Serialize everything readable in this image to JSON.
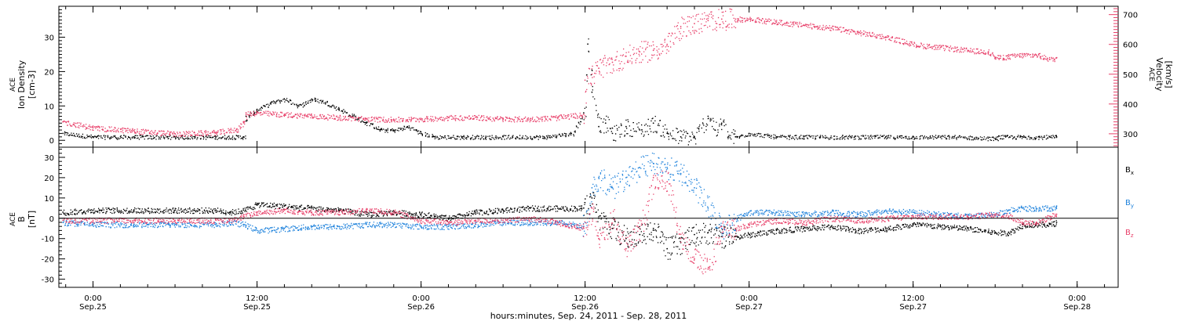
{
  "time_axis": {
    "title": "hours:minutes, Sep. 24, 2011 - Sep. 28, 2011",
    "ticks": [
      {
        "t": 0,
        "time": "0:00",
        "date": "Sep.25"
      },
      {
        "t": 12,
        "time": "12:00",
        "date": "Sep.25"
      },
      {
        "t": 24,
        "time": "0:00",
        "date": "Sep.26"
      },
      {
        "t": 36,
        "time": "12:00",
        "date": "Sep.26"
      },
      {
        "t": 48,
        "time": "0:00",
        "date": "Sep.27"
      },
      {
        "t": 60,
        "time": "12:00",
        "date": "Sep.27"
      },
      {
        "t": 72,
        "time": "0:00",
        "date": "Sep.28"
      }
    ]
  },
  "top_panel": {
    "left_label": [
      "ACE",
      "Ion Density",
      "[cm-3]"
    ],
    "right_label": [
      "ACE",
      "Velocity",
      "[km/s]"
    ]
  },
  "bottom_panel": {
    "left_label": [
      "ACE",
      "B",
      "[nT]"
    ],
    "legend": [
      {
        "label": "Bx",
        "base": "B",
        "sub": "x",
        "color": "#000000"
      },
      {
        "label": "By",
        "base": "B",
        "sub": "y",
        "color": "#1e82dc"
      },
      {
        "label": "Bz",
        "base": "B",
        "sub": "z",
        "color": "#e8406a"
      }
    ]
  },
  "colors": {
    "density": "#000000",
    "velocity": "#e8406a",
    "bx": "#000000",
    "by": "#1e82dc",
    "bz": "#e8406a",
    "right_axis": "#e8406a"
  },
  "chart_data": [
    {
      "type": "scatter",
      "title": "",
      "xlabel": "hours:minutes, Sep. 24, 2011 - Sep. 28, 2011",
      "x_units": "hours from 2011-09-25 00:00 UT",
      "xlim": [
        -2.5,
        75
      ],
      "y_axes": [
        {
          "side": "left",
          "label": "ACE Ion Density [cm-3]",
          "ylim": [
            -2,
            39
          ],
          "ticks": [
            0,
            10,
            20,
            30
          ]
        },
        {
          "side": "right",
          "label": "ACE Velocity [km/s]",
          "ylim": [
            255,
            728
          ],
          "ticks": [
            300,
            400,
            500,
            600,
            700
          ]
        }
      ],
      "series": [
        {
          "name": "Ion Density",
          "axis": "left",
          "color": "#000000",
          "x": [
            -2.2,
            0,
            3,
            6,
            9,
            11,
            11.2,
            12,
            13,
            14,
            15,
            16,
            17,
            18,
            19,
            20,
            21,
            22,
            23,
            24,
            25,
            27,
            30,
            33,
            35,
            35.9,
            36.2,
            36.5,
            37,
            37.5,
            38,
            39,
            40,
            41,
            42,
            43,
            44,
            45,
            45.5,
            46,
            46.5,
            47,
            48,
            50,
            52,
            55,
            58,
            60,
            63,
            66,
            66.2,
            68,
            70,
            70.5
          ],
          "y": [
            2,
            1,
            1,
            1,
            1,
            1,
            7,
            9,
            11,
            12,
            10,
            12,
            11,
            9,
            7,
            5,
            3,
            3,
            4,
            2,
            1,
            1,
            1,
            1,
            2,
            8,
            28,
            14,
            4,
            5,
            2,
            4,
            3,
            5,
            2,
            1,
            1,
            7,
            3,
            5,
            1,
            1,
            2,
            1,
            1,
            1,
            1,
            1,
            1,
            0.5,
            1,
            1,
            1,
            1
          ]
        },
        {
          "name": "Velocity",
          "axis": "right",
          "color": "#e8406a",
          "x": [
            -2.2,
            0,
            3,
            6,
            9,
            10.5,
            11,
            11.2,
            12,
            14,
            16,
            18,
            20,
            22,
            24,
            26,
            28,
            30,
            32,
            34,
            35.9,
            36,
            36.5,
            37,
            38,
            39,
            40,
            41,
            42,
            43,
            44,
            45,
            46,
            47,
            48,
            50,
            52,
            54,
            56,
            58,
            60,
            62,
            64,
            65.5,
            66,
            67,
            68,
            69,
            70,
            70.5
          ],
          "y": [
            340,
            320,
            310,
            300,
            305,
            315,
            340,
            370,
            370,
            365,
            360,
            355,
            350,
            348,
            350,
            355,
            355,
            350,
            350,
            355,
            365,
            480,
            500,
            520,
            540,
            560,
            575,
            580,
            600,
            660,
            670,
            680,
            685,
            685,
            685,
            675,
            665,
            655,
            640,
            625,
            600,
            590,
            580,
            575,
            555,
            560,
            565,
            565,
            550,
            555
          ]
        }
      ]
    },
    {
      "type": "scatter",
      "title": "",
      "xlabel": "hours:minutes, Sep. 24, 2011 - Sep. 28, 2011",
      "x_units": "hours from 2011-09-25 00:00 UT",
      "xlim": [
        -2.5,
        75
      ],
      "ylabel": "ACE B [nT]",
      "ylim": [
        -34,
        35
      ],
      "yticks": [
        -30,
        -20,
        -10,
        0,
        10,
        20,
        30
      ],
      "zero_line": true,
      "series": [
        {
          "name": "Bx",
          "color": "#000000",
          "x": [
            -2.2,
            0,
            3,
            6,
            9,
            10,
            11,
            12,
            14,
            16,
            18,
            20,
            22,
            24,
            26,
            28,
            30,
            32,
            34,
            35.9,
            36.5,
            37,
            38,
            39,
            40,
            41,
            42,
            43,
            44,
            45,
            46,
            47,
            48,
            50,
            52,
            54,
            56,
            58,
            60,
            62,
            64,
            66,
            67,
            68,
            69,
            70,
            70.5
          ],
          "y": [
            3,
            4,
            4,
            4,
            4,
            3,
            4,
            7,
            6,
            5,
            4,
            2,
            3,
            2,
            0,
            3,
            4,
            5,
            5,
            5,
            10,
            0,
            -5,
            -10,
            -8,
            -5,
            -15,
            -12,
            -8,
            -7,
            -9,
            -9,
            -8,
            -6,
            -5,
            -4,
            -6,
            -5,
            -3,
            -4,
            -5,
            -7,
            -7,
            -3,
            -3,
            -3,
            -2
          ]
        },
        {
          "name": "By",
          "color": "#1e82dc",
          "x": [
            -2.2,
            0,
            3,
            6,
            9,
            10,
            11,
            12,
            14,
            16,
            18,
            20,
            22,
            24,
            26,
            28,
            30,
            32,
            34,
            35.9,
            36.5,
            37,
            38,
            39,
            40,
            41,
            42,
            43,
            44,
            45,
            46,
            47,
            48,
            50,
            52,
            54,
            56,
            58,
            60,
            62,
            64,
            66,
            67,
            68,
            69,
            70,
            70.5
          ],
          "y": [
            -2,
            -3,
            -3,
            -3,
            -3,
            -2,
            -3,
            -6,
            -5,
            -4,
            -4,
            -3,
            -3,
            -4,
            -4,
            -3,
            -2,
            -2,
            -2,
            -4,
            15,
            20,
            15,
            20,
            25,
            27,
            25,
            22,
            15,
            5,
            -5,
            0,
            3,
            3,
            2,
            3,
            2,
            4,
            3,
            2,
            1,
            2,
            4,
            5,
            5,
            5,
            6
          ]
        },
        {
          "name": "Bz",
          "color": "#e8406a",
          "x": [
            -2.2,
            0,
            3,
            6,
            9,
            10,
            11,
            12,
            14,
            16,
            18,
            20,
            22,
            24,
            26,
            28,
            30,
            32,
            34,
            35.9,
            36.5,
            37,
            38,
            39,
            40,
            41,
            42,
            43,
            44,
            45,
            46,
            47,
            48,
            50,
            52,
            54,
            56,
            58,
            60,
            62,
            64,
            66,
            67,
            68,
            69,
            70,
            70.5
          ],
          "y": [
            -1,
            -1,
            -1,
            -1,
            -1,
            -1,
            1,
            3,
            4,
            3,
            3,
            4,
            3,
            -1,
            -2,
            -1,
            -1,
            0,
            -2,
            -5,
            5,
            -10,
            0,
            -15,
            -5,
            20,
            18,
            -10,
            -20,
            -25,
            -4,
            -5,
            -3,
            -1,
            -2,
            0,
            -1,
            0,
            1,
            1,
            1,
            2,
            1,
            -2,
            -2,
            1,
            2
          ]
        }
      ]
    }
  ]
}
